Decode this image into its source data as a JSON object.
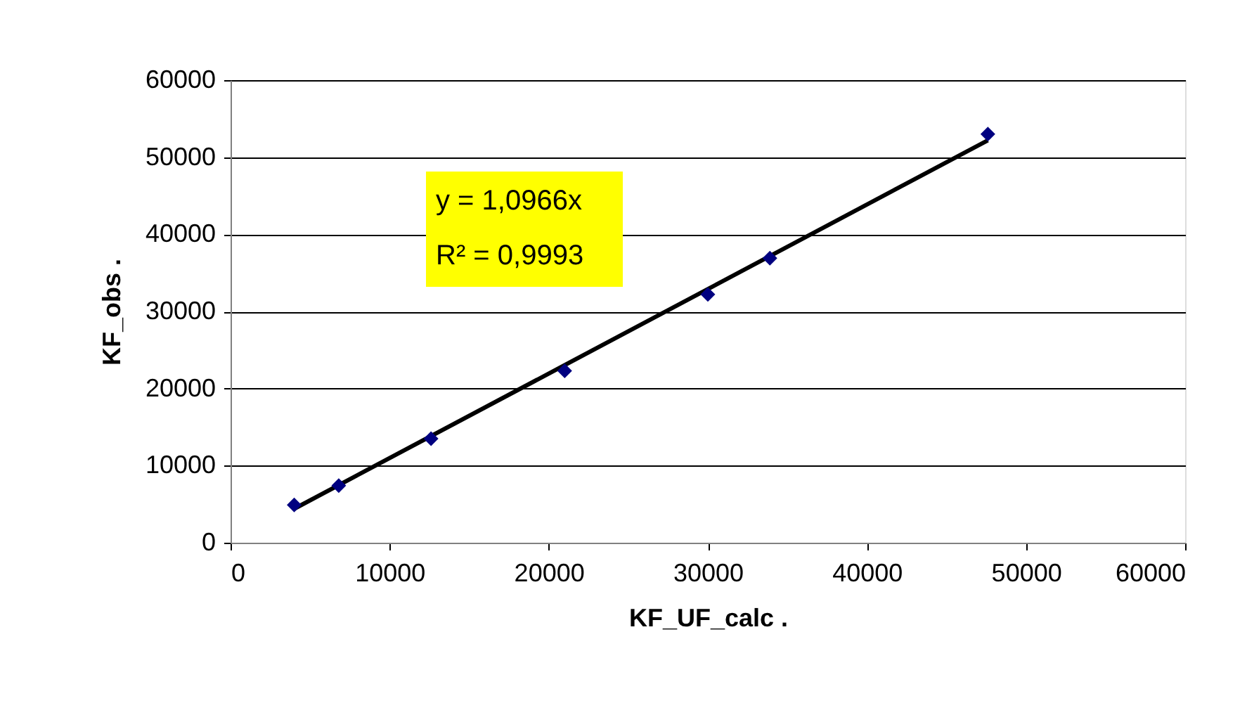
{
  "chart_data": {
    "type": "scatter",
    "xlabel": "KF_UF_calc     .",
    "ylabel": "KF_obs     .",
    "x": [
      4000,
      6800,
      12600,
      21000,
      30000,
      33900,
      47600
    ],
    "series": [
      {
        "color": "#000080",
        "values": [
          4900,
          7400,
          13500,
          22300,
          32200,
          36900,
          53000
        ],
        "marker": "diamond"
      },
      {
        "type": "line",
        "color": "#000000",
        "line_style": "solid",
        "x": [
          4000,
          47600
        ],
        "values": [
          4400,
          52200
        ]
      }
    ],
    "annotations": [
      "y = 1,0966x",
      "R² = 0,9993"
    ],
    "xlim": [
      0,
      60000
    ],
    "xticks": [
      0,
      10000,
      20000,
      30000,
      40000,
      50000,
      60000
    ],
    "ylim": [
      0,
      60000
    ],
    "yticks": [
      0,
      10000,
      20000,
      30000,
      40000,
      50000,
      60000
    ],
    "grid": "y"
  }
}
